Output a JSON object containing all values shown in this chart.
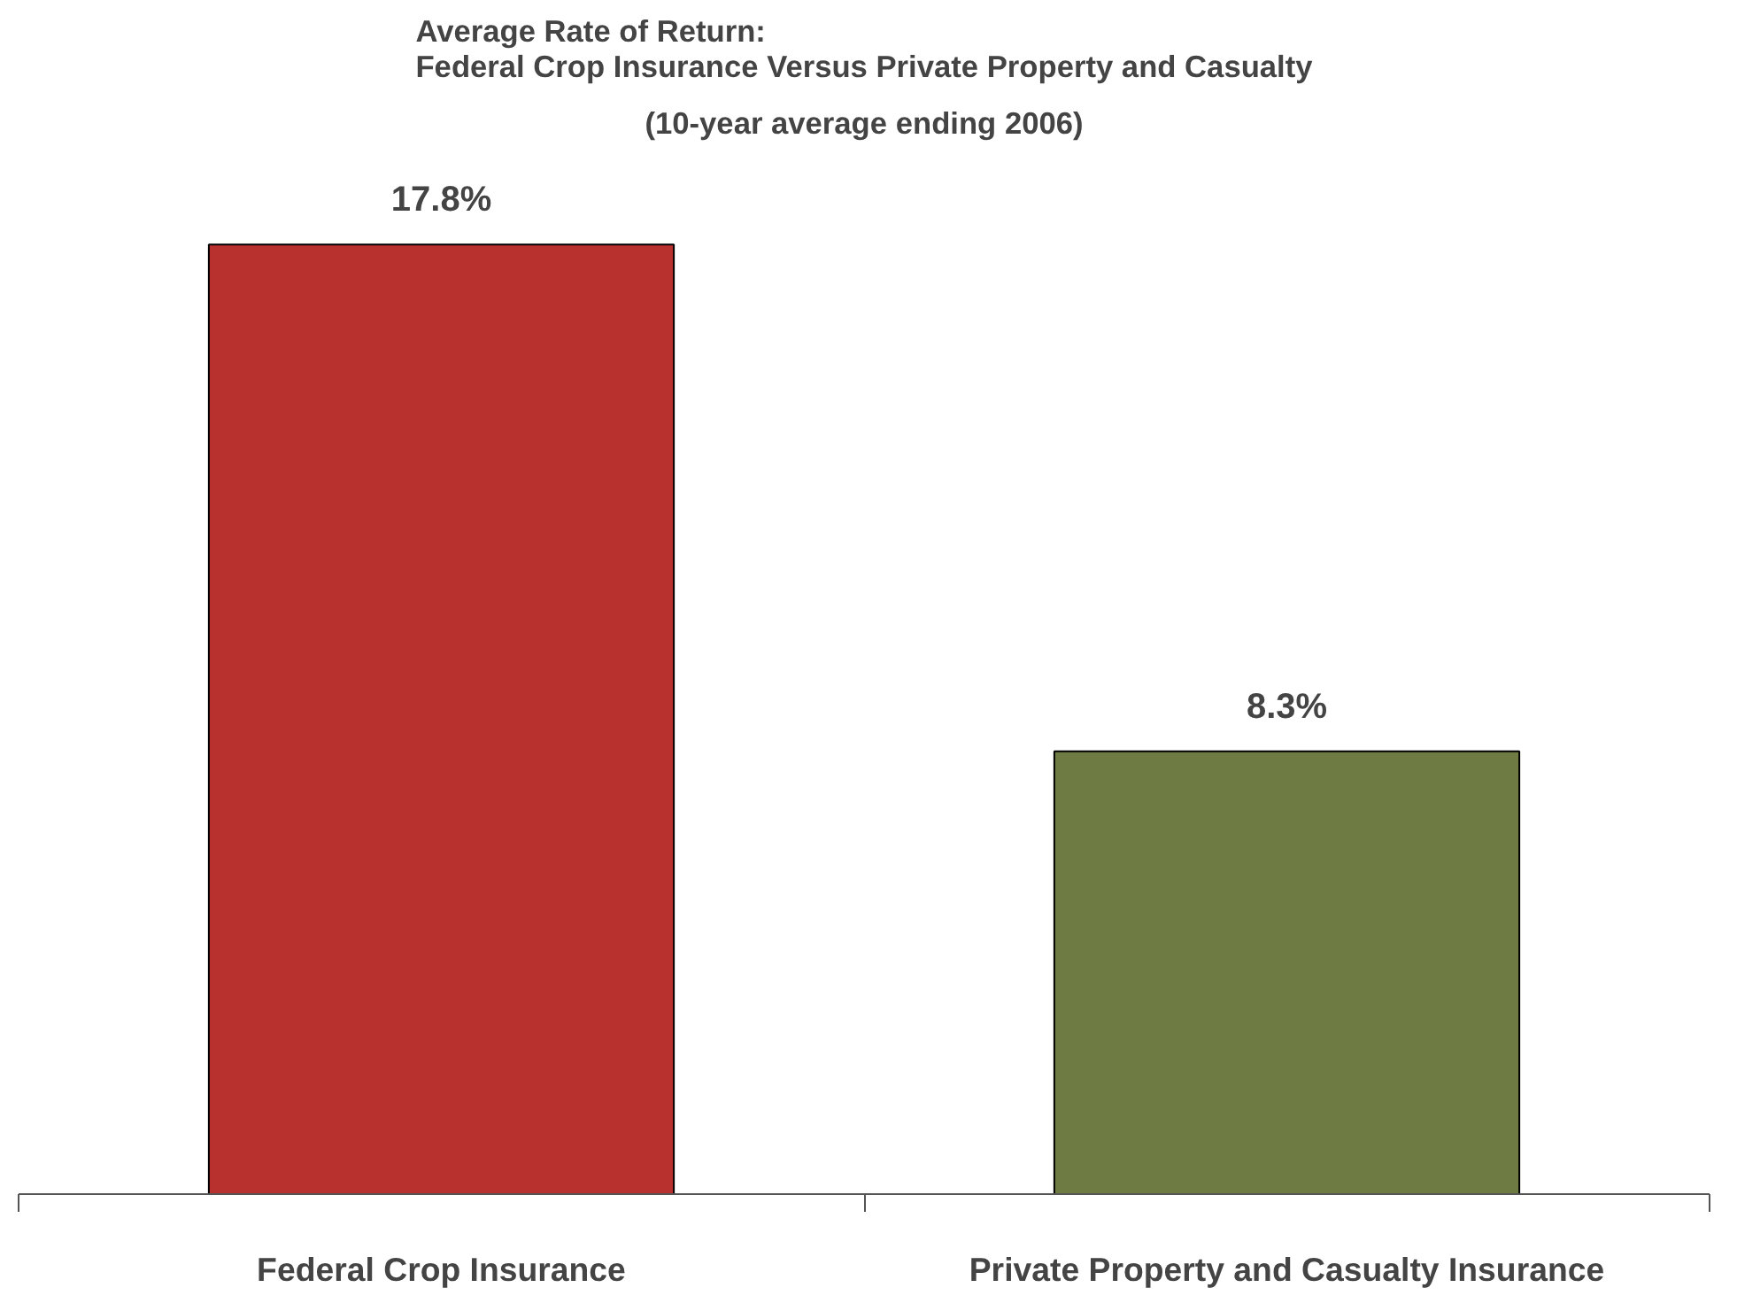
{
  "chart_data": {
    "type": "bar",
    "title": "Average Rate of Return:\nFederal Crop Insurance Versus Private Property and Casualty",
    "subtitle": "(10-year average ending 2006)",
    "categories": [
      "Federal Crop Insurance",
      "Private Property and Casualty Insurance"
    ],
    "values": [
      17.8,
      8.3
    ],
    "colors": [
      "#b8312f",
      "#6e7b42"
    ],
    "value_labels": [
      "17.8%",
      "8.3%"
    ]
  }
}
